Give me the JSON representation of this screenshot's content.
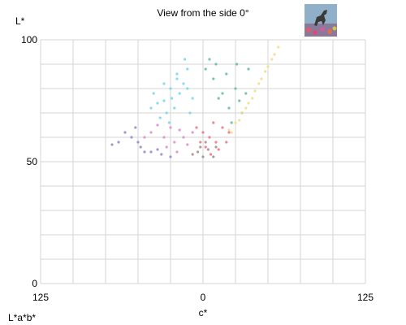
{
  "header": {
    "title": "View from the side 0°"
  },
  "footer": {
    "color_space_label": "L*a*b*"
  },
  "colors": {
    "grid": "#d6d6d6",
    "axis_text": "#000000",
    "background": "#ffffff"
  },
  "chart_data": {
    "type": "scatter",
    "title": "View from the side 0°",
    "xlabel": "c*",
    "ylabel": "L*",
    "xlim": [
      -125,
      125
    ],
    "ylim": [
      0,
      100
    ],
    "x_ticks": [
      {
        "value": -125,
        "label": "125"
      },
      {
        "value": 0,
        "label": "0"
      },
      {
        "value": 125,
        "label": "125"
      }
    ],
    "y_ticks": [
      {
        "value": 0,
        "label": "0"
      },
      {
        "value": 50,
        "label": "50"
      },
      {
        "value": 100,
        "label": "100"
      }
    ],
    "grid": true,
    "x_grid_step": 25,
    "y_grid_step": 10,
    "series": [
      {
        "color": "#72d6ef",
        "points": [
          [
            -14,
            92
          ],
          [
            -12,
            88
          ],
          [
            -20,
            84
          ],
          [
            -25,
            80
          ],
          [
            -18,
            78
          ],
          [
            -30,
            75
          ],
          [
            -22,
            72
          ],
          [
            -10,
            70
          ],
          [
            -35,
            74
          ],
          [
            -28,
            70
          ],
          [
            -15,
            82
          ],
          [
            -8,
            76
          ],
          [
            -40,
            72
          ],
          [
            -33,
            68
          ],
          [
            -26,
            66
          ],
          [
            -20,
            86
          ],
          [
            -12,
            80
          ],
          [
            -38,
            78
          ],
          [
            -30,
            82
          ],
          [
            -24,
            76
          ]
        ]
      },
      {
        "color": "#61b9a3",
        "points": [
          [
            5,
            92
          ],
          [
            10,
            90
          ],
          [
            18,
            86
          ],
          [
            25,
            80
          ],
          [
            28,
            75
          ],
          [
            12,
            76
          ],
          [
            20,
            72
          ],
          [
            30,
            70
          ],
          [
            8,
            84
          ],
          [
            15,
            78
          ],
          [
            35,
            88
          ],
          [
            22,
            66
          ],
          [
            2,
            88
          ],
          [
            26,
            90
          ],
          [
            33,
            78
          ]
        ]
      },
      {
        "color": "#d98cc8",
        "points": [
          [
            -40,
            62
          ],
          [
            -30,
            60
          ],
          [
            -22,
            58
          ],
          [
            -18,
            63
          ],
          [
            -12,
            57
          ],
          [
            -35,
            65
          ],
          [
            -25,
            64
          ],
          [
            -15,
            60
          ],
          [
            -8,
            62
          ],
          [
            -28,
            56
          ],
          [
            -20,
            54
          ],
          [
            -45,
            60
          ]
        ]
      },
      {
        "color": "#9786c5",
        "points": [
          [
            -65,
            58
          ],
          [
            -55,
            60
          ],
          [
            -48,
            56
          ],
          [
            -40,
            54
          ],
          [
            -32,
            53
          ],
          [
            -60,
            62
          ],
          [
            -50,
            58
          ],
          [
            -45,
            54
          ],
          [
            -35,
            55
          ],
          [
            -25,
            52
          ],
          [
            -70,
            57
          ],
          [
            -52,
            64
          ]
        ]
      },
      {
        "color": "#ee6f82",
        "points": [
          [
            -5,
            64
          ],
          [
            0,
            62
          ],
          [
            5,
            60
          ],
          [
            10,
            58
          ],
          [
            15,
            64
          ],
          [
            20,
            62
          ],
          [
            8,
            66
          ],
          [
            2,
            56
          ],
          [
            12,
            55
          ],
          [
            -2,
            58
          ],
          [
            18,
            58
          ],
          [
            6,
            53
          ]
        ]
      },
      {
        "color": "#9a8f85",
        "points": [
          [
            0,
            52
          ],
          [
            -4,
            54
          ],
          [
            4,
            55
          ],
          [
            -8,
            53
          ],
          [
            8,
            52
          ],
          [
            2,
            58
          ],
          [
            -2,
            56
          ],
          [
            10,
            56
          ]
        ]
      },
      {
        "color": "#f2dc87",
        "points": [
          [
            20,
            63
          ],
          [
            25,
            66
          ],
          [
            30,
            70
          ],
          [
            35,
            74
          ],
          [
            40,
            79
          ],
          [
            45,
            84
          ],
          [
            50,
            89
          ],
          [
            55,
            94
          ],
          [
            58,
            97
          ],
          [
            22,
            62
          ],
          [
            28,
            67
          ],
          [
            33,
            72
          ],
          [
            38,
            76
          ],
          [
            43,
            82
          ],
          [
            48,
            87
          ],
          [
            53,
            92
          ]
        ]
      }
    ]
  }
}
